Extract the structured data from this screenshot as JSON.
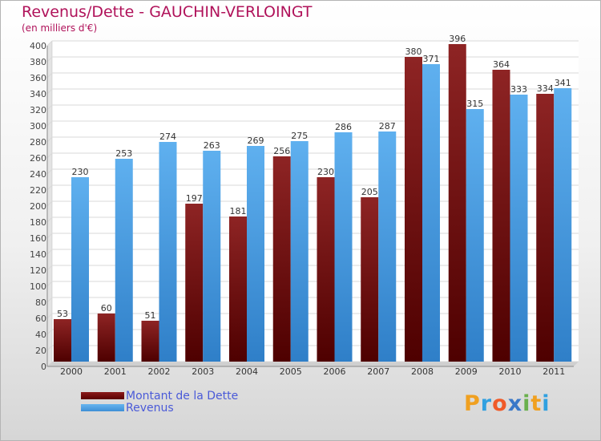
{
  "chart_data": {
    "type": "bar",
    "title": "Revenus/Dette - GAUCHIN-VERLOINGT",
    "subtitle": "(en milliers d'€)",
    "categories": [
      "2000",
      "2001",
      "2002",
      "2003",
      "2004",
      "2005",
      "2006",
      "2007",
      "2008",
      "2009",
      "2010",
      "2011"
    ],
    "series": [
      {
        "name": "Montant de la Dette",
        "color": "#6e0a0a",
        "values": [
          53,
          60,
          51,
          197,
          181,
          256,
          230,
          205,
          380,
          396,
          364,
          334
        ]
      },
      {
        "name": "Revenus",
        "color": "#4fa3e8",
        "values": [
          230,
          253,
          274,
          263,
          269,
          275,
          286,
          287,
          371,
          315,
          333,
          341
        ]
      }
    ],
    "ylim": [
      0,
      400
    ],
    "ytick_step": 20,
    "grid": true,
    "legend": "bottom-left"
  },
  "logo": {
    "letters": [
      "P",
      "r",
      "o",
      "x",
      "i",
      "t",
      "i"
    ],
    "colors": [
      "#f0a020",
      "#30a0e0",
      "#f05a28",
      "#3a78c8",
      "#6ab04c",
      "#f0a020",
      "#30a0e0"
    ]
  }
}
